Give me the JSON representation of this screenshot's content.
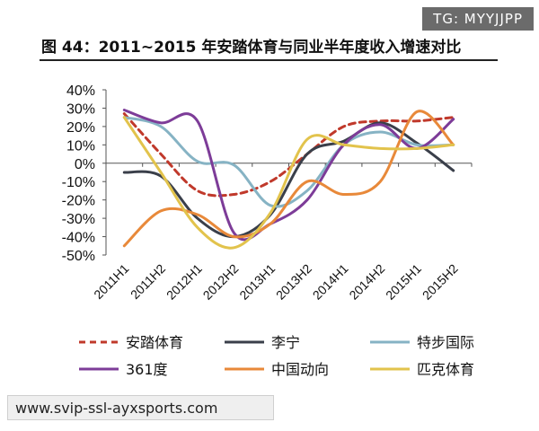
{
  "watermark_top": "TG: MYYJJPP",
  "watermark_bottom": "www.svip-ssl-ayxsports.com",
  "chart_data": {
    "type": "line",
    "title": "图 44：2011~2015 年安踏体育与同业半年度收入增速对比",
    "xlabel": "",
    "ylabel": "",
    "ylim": [
      -50,
      40
    ],
    "yticks": [
      "40%",
      "30%",
      "20%",
      "10%",
      "0%",
      "-10%",
      "-20%",
      "-30%",
      "-40%",
      "-50%"
    ],
    "categories": [
      "2011H1",
      "2011H2",
      "2012H1",
      "2012H2",
      "2013H1",
      "2013H2",
      "2014H1",
      "2014H2",
      "2015H1",
      "2015H2"
    ],
    "series": [
      {
        "name": "安踏体育",
        "color": "#c0392b",
        "dash": true,
        "values": [
          27,
          5,
          -15,
          -17,
          -10,
          5,
          20,
          23,
          23,
          25
        ]
      },
      {
        "name": "李宁",
        "color": "#3a3f4a",
        "dash": false,
        "values": [
          -5,
          -7,
          -30,
          -40,
          -28,
          5,
          12,
          22,
          11,
          -4
        ]
      },
      {
        "name": "特步国际",
        "color": "#86b3c4",
        "dash": false,
        "values": [
          25,
          20,
          1,
          -1,
          -23,
          -15,
          10,
          17,
          10,
          10
        ]
      },
      {
        "name": "361度",
        "color": "#7d3c98",
        "dash": false,
        "values": [
          29,
          22,
          23,
          -38,
          -33,
          -20,
          10,
          21,
          8,
          24
        ]
      },
      {
        "name": "中国动向",
        "color": "#e8893a",
        "dash": false,
        "values": [
          -45,
          -26,
          -28,
          -40,
          -33,
          -10,
          -17,
          -10,
          28,
          10
        ]
      },
      {
        "name": "匹克体育",
        "color": "#e2c34c",
        "dash": false,
        "values": [
          25,
          -5,
          -35,
          -46,
          -27,
          13,
          10,
          8,
          8,
          10
        ]
      }
    ]
  }
}
